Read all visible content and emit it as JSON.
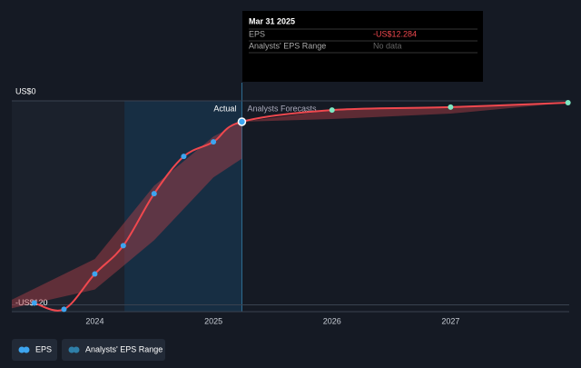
{
  "chart_data": {
    "type": "line",
    "xlim": [
      2023.3,
      2028
    ],
    "xticks": [
      2024,
      2025,
      2026,
      2027
    ],
    "ylim": [
      -124,
      0
    ],
    "yticks": [
      {
        "value": 0,
        "label": "US$0"
      },
      {
        "value": -120,
        "label": "-US$120"
      }
    ],
    "actual_end": 2025.24,
    "highlight_x": [
      2024.25,
      2025.24
    ],
    "actual_label": "Actual",
    "forecast_label": "Analysts Forecasts",
    "series": [
      {
        "name": "EPS",
        "color": "#f0484e",
        "actual_marker_color": "#3da5f0",
        "forecast_marker_color": "#7ee8c2",
        "x": [
          2023.49,
          2023.74,
          2024.0,
          2024.24,
          2024.5,
          2024.75,
          2025.0,
          2025.24,
          2026.0,
          2027.0,
          2027.99
        ],
        "values": [
          -118.9,
          -122.6,
          -101.8,
          -85.2,
          -54.6,
          -32.7,
          -24.1,
          -12.284,
          -5.4,
          -3.7,
          -1.1
        ]
      }
    ],
    "range": {
      "name": "Analysts' EPS Range",
      "color": "#b5404a",
      "bands": [
        {
          "x": [
            2023.3,
            2024.0,
            2024.5,
            2025.0,
            2025.24
          ],
          "low": [
            -122,
            -111,
            -82,
            -45,
            -34
          ],
          "high": [
            -117,
            -93,
            -50,
            -21,
            -12.284
          ]
        },
        {
          "x": [
            2025.24,
            2026.0,
            2027.0,
            2027.99
          ],
          "low": [
            -12.284,
            -10.7,
            -7.5,
            -1.1
          ],
          "high": [
            -12.284,
            -5.4,
            -3.3,
            -1.1
          ]
        }
      ]
    },
    "tooltip": {
      "date": "Mar 31 2025",
      "rows": [
        {
          "label": "EPS",
          "value": "-US$12.284"
        },
        {
          "label": "Analysts' EPS Range",
          "value": "No data"
        }
      ]
    }
  }
}
